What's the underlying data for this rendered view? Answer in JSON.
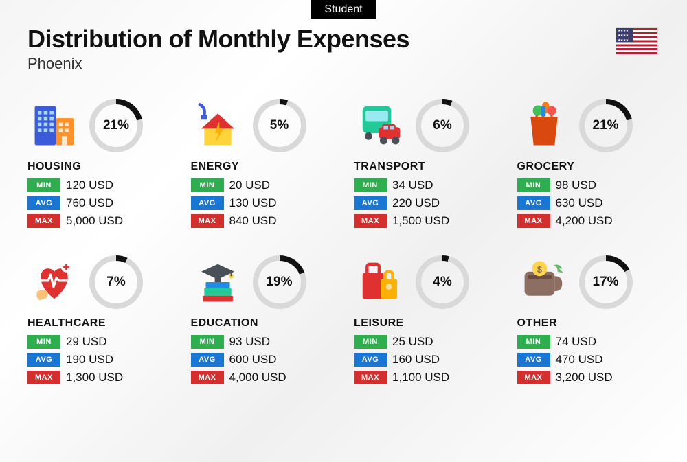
{
  "badge": "Student",
  "title": "Distribution of Monthly Expenses",
  "subtitle": "Phoenix",
  "flag_country": "United States",
  "labels": {
    "min": "MIN",
    "avg": "AVG",
    "max": "MAX",
    "currency": "USD"
  },
  "colors": {
    "min_pill": "#2eae4f",
    "avg_pill": "#1976d2",
    "max_pill": "#d32f2f",
    "donut_fg": "#111111",
    "donut_bg": "#d9d9d9",
    "text": "#111111",
    "background": "#f8f8f8"
  },
  "donut": {
    "stroke_width": 8,
    "radius": 35
  },
  "categories": [
    {
      "key": "housing",
      "name": "HOUSING",
      "percent": 21,
      "min": "120 USD",
      "avg": "760 USD",
      "max": "5,000 USD"
    },
    {
      "key": "energy",
      "name": "ENERGY",
      "percent": 5,
      "min": "20 USD",
      "avg": "130 USD",
      "max": "840 USD"
    },
    {
      "key": "transport",
      "name": "TRANSPORT",
      "percent": 6,
      "min": "34 USD",
      "avg": "220 USD",
      "max": "1,500 USD"
    },
    {
      "key": "grocery",
      "name": "GROCERY",
      "percent": 21,
      "min": "98 USD",
      "avg": "630 USD",
      "max": "4,200 USD"
    },
    {
      "key": "healthcare",
      "name": "HEALTHCARE",
      "percent": 7,
      "min": "29 USD",
      "avg": "190 USD",
      "max": "1,300 USD"
    },
    {
      "key": "education",
      "name": "EDUCATION",
      "percent": 19,
      "min": "93 USD",
      "avg": "600 USD",
      "max": "4,000 USD"
    },
    {
      "key": "leisure",
      "name": "LEISURE",
      "percent": 4,
      "min": "25 USD",
      "avg": "160 USD",
      "max": "1,100 USD"
    },
    {
      "key": "other",
      "name": "OTHER",
      "percent": 17,
      "min": "74 USD",
      "avg": "470 USD",
      "max": "3,200 USD"
    }
  ]
}
